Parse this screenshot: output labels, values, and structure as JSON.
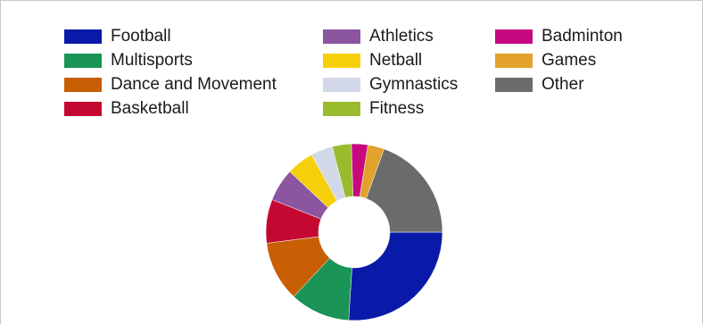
{
  "chart_data": {
    "type": "pie",
    "variant": "donut",
    "title": "",
    "legend_position": "top",
    "categories": [
      "Football",
      "Multisports",
      "Dance and Movement",
      "Basketball",
      "Athletics",
      "Netball",
      "Gymnastics",
      "Fitness",
      "Badminton",
      "Games",
      "Other"
    ],
    "values": [
      26.0,
      11.0,
      11.0,
      8.0,
      6.0,
      5.0,
      4.0,
      3.5,
      3.0,
      3.0,
      19.5
    ],
    "colors": [
      "#0a1aa8",
      "#1a9457",
      "#c85f05",
      "#c40832",
      "#8b55a0",
      "#f5d00a",
      "#d3d8e8",
      "#9bbb2e",
      "#c8087f",
      "#e2a22c",
      "#6b6b6b"
    ],
    "units": "%"
  }
}
